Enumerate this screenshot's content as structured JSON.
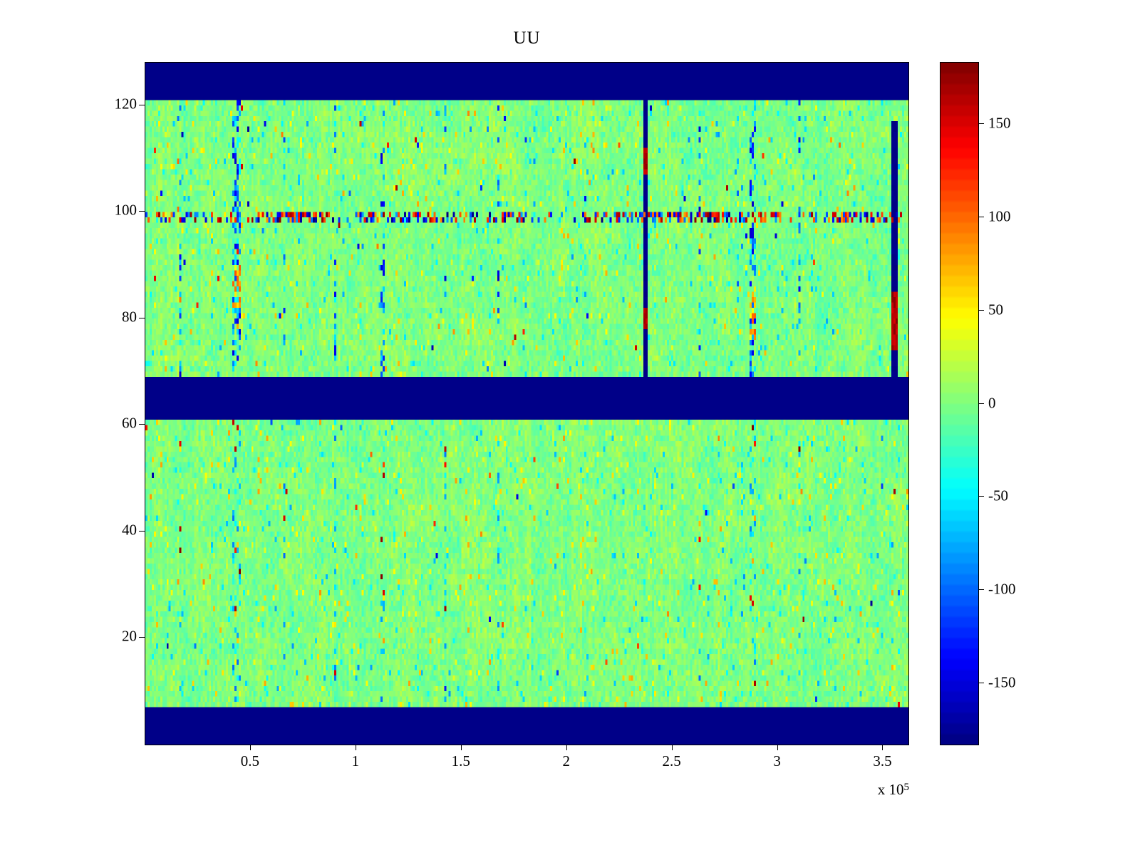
{
  "chart_data": {
    "type": "heatmap",
    "title": "UU",
    "xlabel": "",
    "ylabel": "",
    "colormap": "jet",
    "grid_on": false,
    "x_range": [
      0,
      362000
    ],
    "x_multiplier_base": "x 10",
    "x_multiplier_exponent": "5",
    "x_ticks": [
      {
        "value": 50000,
        "label": "0.5"
      },
      {
        "value": 100000,
        "label": "1"
      },
      {
        "value": 150000,
        "label": "1.5"
      },
      {
        "value": 200000,
        "label": "2"
      },
      {
        "value": 250000,
        "label": "2.5"
      },
      {
        "value": 300000,
        "label": "3"
      },
      {
        "value": 350000,
        "label": "3.5"
      }
    ],
    "y_range": [
      0,
      128
    ],
    "y_ticks": [
      {
        "value": 20,
        "label": "20"
      },
      {
        "value": 40,
        "label": "40"
      },
      {
        "value": 60,
        "label": "60"
      },
      {
        "value": 80,
        "label": "80"
      },
      {
        "value": 100,
        "label": "100"
      },
      {
        "value": 120,
        "label": "120"
      }
    ],
    "value_range": [
      -183,
      183
    ],
    "colorbar_ticks": [
      {
        "value": 150,
        "label": "150"
      },
      {
        "value": 100,
        "label": "100"
      },
      {
        "value": 50,
        "label": "50"
      },
      {
        "value": 0,
        "label": "0"
      },
      {
        "value": -50,
        "label": "-50"
      },
      {
        "value": -100,
        "label": "-100"
      },
      {
        "value": -150,
        "label": "-150"
      }
    ],
    "grid": {
      "columns": 360,
      "rows": 128
    },
    "seed": 1337,
    "noise": {
      "std": 9,
      "coarse_amplitude": 8,
      "column_offset": 5,
      "outlier_prob": 0.05,
      "extreme_prob": 0.003
    },
    "features": {
      "solid_bands": [
        {
          "y_from": 121,
          "y_to": 128,
          "value": -180
        },
        {
          "y_from": 61,
          "y_to": 68.5,
          "value": -180
        },
        {
          "y_from": 0,
          "y_to": 7,
          "value": -180
        }
      ],
      "anomaly_band": {
        "rows": [
          98,
          99
        ],
        "min_density": 0.15,
        "max_density": 0.8,
        "positive_fraction": 0.55,
        "min_magnitude": 80,
        "max_magnitude": 183
      },
      "vertical_stripes": [
        {
          "x": 17000,
          "width": 1,
          "strength": 0.5,
          "region": "both"
        },
        {
          "x": 43000,
          "width": 4,
          "strength": 0.7,
          "region": "both",
          "warm_patch": [
            82,
            90
          ]
        },
        {
          "x": 66000,
          "width": 1,
          "strength": 0.45,
          "region": "both"
        },
        {
          "x": 90000,
          "width": 1,
          "strength": 0.4,
          "region": "both"
        },
        {
          "x": 113000,
          "width": 2,
          "strength": 0.45,
          "region": "both"
        },
        {
          "x": 142000,
          "width": 1,
          "strength": 0.4,
          "region": "both"
        },
        {
          "x": 167000,
          "width": 1,
          "strength": 0.5,
          "region": "both"
        },
        {
          "x": 237000,
          "width": 2,
          "strength": 1,
          "region": "upper",
          "solid": true,
          "red_patches": [
            [
              78,
              82
            ],
            [
              107,
              112
            ]
          ]
        },
        {
          "x": 263000,
          "width": 1,
          "strength": 0.4,
          "region": "both"
        },
        {
          "x": 288000,
          "width": 3,
          "strength": 0.65,
          "region": "both",
          "warm_patch": [
            76,
            86
          ]
        },
        {
          "x": 310000,
          "width": 1,
          "strength": 0.5,
          "region": "both"
        },
        {
          "x": 355000,
          "width": 3,
          "strength": 1,
          "region": "upper",
          "solid": true,
          "y_to": 117,
          "red_patches": [
            [
              74,
              85
            ]
          ]
        }
      ]
    }
  }
}
